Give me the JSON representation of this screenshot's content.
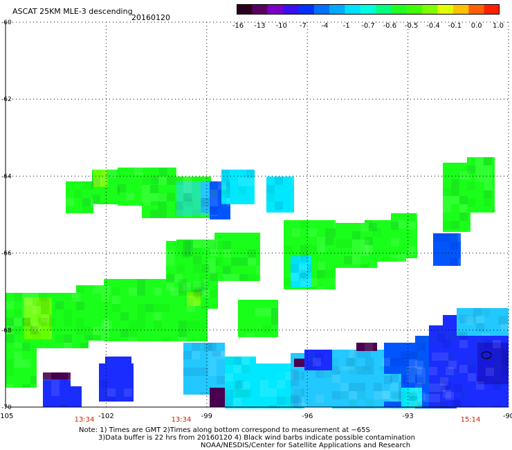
{
  "header": {
    "title": "ASCAT 25KM MLE-3 descending",
    "date": "20160120"
  },
  "colorbar": {
    "labels": [
      "-16",
      "-13",
      "-10",
      "-7",
      "-4",
      "-1",
      "-0.7",
      "-0.6",
      "-0.5",
      "-0.4",
      "-0.1",
      "0.0",
      "1.0"
    ],
    "colors": [
      "#2a0020",
      "#5a0060",
      "#7a00c8",
      "#3a10f0",
      "#0030ff",
      "#0070ff",
      "#00aaff",
      "#00e0ff",
      "#00ffe0",
      "#00ff80",
      "#20ff20",
      "#40ff00",
      "#80ff00",
      "#e0ff00",
      "#ffc000",
      "#ff6000",
      "#ff2000"
    ]
  },
  "axes": {
    "lat_labels": [
      "-60",
      "-62",
      "-64",
      "-66",
      "-68",
      "-70"
    ],
    "lon_labels": [
      "-105",
      "-102",
      "-99",
      "-96",
      "-93",
      "-90"
    ],
    "times": [
      "13:34",
      "13:34",
      "15:14"
    ]
  },
  "notes": {
    "line1": "Note: 1) Times are GMT 2)Times along bottom correspond to measurement at −65S",
    "line2": "3)Data buffer is 22 hrs from 20160120 4) Black wind barbs indicate possible contamination",
    "line3": "NOAA/NESDIS/Center for Satellite Applications and Research"
  },
  "palette": {
    "green": "#19ff19",
    "lime": "#66ff00",
    "cyan": "#00e8ff",
    "lightblue": "#22c8ff",
    "blue": "#0055ff",
    "deepblue": "#1a2cff",
    "purple": "#4a0050",
    "time_red": "#cc2200"
  }
}
